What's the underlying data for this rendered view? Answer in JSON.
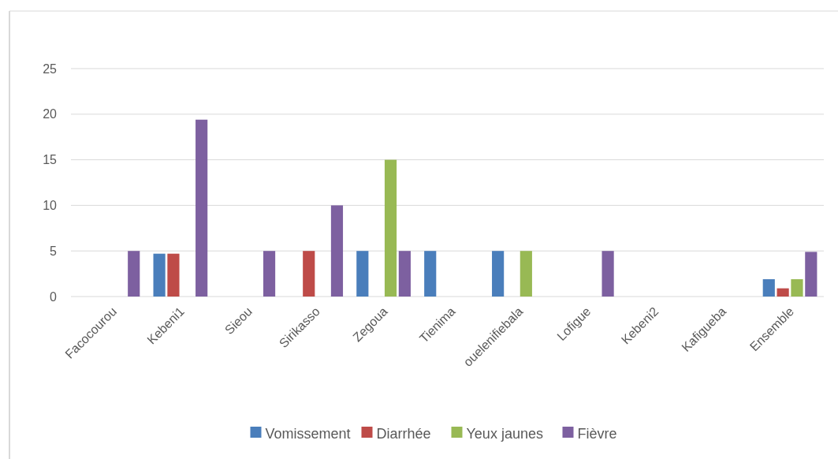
{
  "chart_data": {
    "type": "bar",
    "categories": [
      "Facocourou",
      "Kebeni1",
      "Sieou",
      "Sirikasso",
      "Zegoua",
      "Tienima",
      "ouelenifiebala",
      "Lofigue",
      "Kebeni2",
      "Kafigueba",
      "Ensemble"
    ],
    "series": [
      {
        "name": "Vomissement",
        "color": "#4a7ebb",
        "values": [
          0,
          4.7,
          0,
          0,
          5,
          5,
          5,
          0,
          0,
          0,
          1.9
        ]
      },
      {
        "name": "Diarrhée",
        "color": "#be4b48",
        "values": [
          0,
          4.7,
          0,
          5,
          0,
          0,
          0,
          0,
          0,
          0,
          0.9
        ]
      },
      {
        "name": "Yeux jaunes",
        "color": "#98b954",
        "values": [
          0,
          0,
          0,
          0,
          15,
          0,
          5,
          0,
          0,
          0,
          1.9
        ]
      },
      {
        "name": "Fièvre",
        "color": "#7d60a0",
        "values": [
          5,
          19.4,
          5,
          10,
          5,
          0,
          0,
          5,
          0,
          0,
          4.9
        ]
      }
    ],
    "ylim": [
      0,
      25
    ],
    "yticks": [
      0,
      5,
      10,
      15,
      20,
      25
    ],
    "grid": "y",
    "legend": "bottom"
  }
}
